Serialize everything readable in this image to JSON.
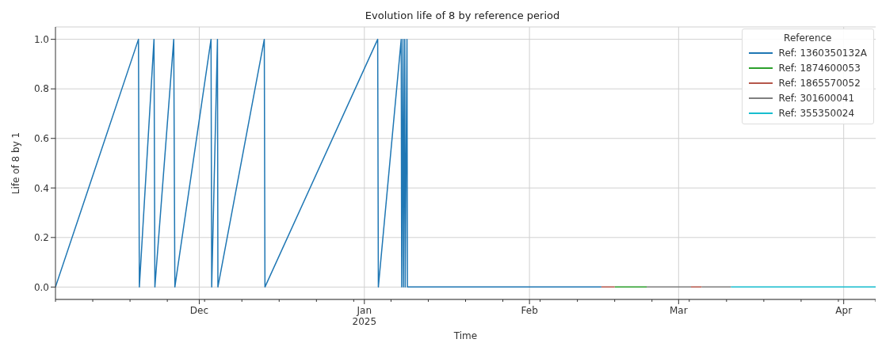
{
  "chart_data": {
    "type": "line",
    "title": "Evolution life of 8 by reference period",
    "xlabel": "Time",
    "ylabel": "Life of 8 by 1",
    "legend_title": "Reference",
    "legend": "top right",
    "grid": true,
    "line_style": "solid",
    "marker": "none",
    "xlim": [
      "2024-11-04",
      "2025-04-07"
    ],
    "xticks": [
      {
        "value": "2024-11-04",
        "label": null
      },
      {
        "value": "2024-11-11",
        "label": null
      },
      {
        "value": "2024-11-18",
        "label": null
      },
      {
        "value": "2024-11-25",
        "label": null
      },
      {
        "value": "2024-12-01",
        "label": "Dec"
      },
      {
        "value": "2024-12-02",
        "label": null
      },
      {
        "value": "2024-12-09",
        "label": null
      },
      {
        "value": "2024-12-16",
        "label": null
      },
      {
        "value": "2024-12-23",
        "label": null
      },
      {
        "value": "2024-12-30",
        "label": null
      },
      {
        "value": "2025-01-01",
        "label": "Jan\n2025"
      },
      {
        "value": "2025-01-06",
        "label": null
      },
      {
        "value": "2025-01-13",
        "label": null
      },
      {
        "value": "2025-01-20",
        "label": null
      },
      {
        "value": "2025-01-27",
        "label": null
      },
      {
        "value": "2025-02-01",
        "label": "Feb"
      },
      {
        "value": "2025-02-03",
        "label": null
      },
      {
        "value": "2025-02-10",
        "label": null
      },
      {
        "value": "2025-02-17",
        "label": null
      },
      {
        "value": "2025-02-24",
        "label": null
      },
      {
        "value": "2025-03-01",
        "label": "Mar"
      },
      {
        "value": "2025-03-03",
        "label": null
      },
      {
        "value": "2025-03-10",
        "label": null
      },
      {
        "value": "2025-03-17",
        "label": null
      },
      {
        "value": "2025-03-24",
        "label": null
      },
      {
        "value": "2025-03-31",
        "label": null
      },
      {
        "value": "2025-04-01",
        "label": "Apr"
      },
      {
        "value": "2025-04-07",
        "label": null
      }
    ],
    "ylim": [
      -0.05,
      1.05
    ],
    "yticks": [
      {
        "value": 0,
        "label": "0.0"
      },
      {
        "value": 0.2,
        "label": "0.2"
      },
      {
        "value": 0.4,
        "label": "0.4"
      },
      {
        "value": 0.6,
        "label": "0.6"
      },
      {
        "value": 0.8,
        "label": "0.8"
      },
      {
        "value": 1,
        "label": "1.0"
      }
    ],
    "series": [
      {
        "name": "Ref: 1360350132A",
        "color": "#1f77b4",
        "x": [
          "2024-11-04",
          "2024-11-19T14:00",
          "2024-11-19T18:00",
          "2024-11-22T12:00",
          "2024-11-22T16:00",
          "2024-11-26T05:00",
          "2024-11-26T10:00",
          "2024-12-03T05:00",
          "2024-12-03T08:00",
          "2024-12-04T10:00",
          "2024-12-04T12:00",
          "2024-12-13T05:00",
          "2024-12-13T08:00",
          "2025-01-03T12:00",
          "2025-01-03T15:00",
          "2025-01-07T22:00",
          "2025-01-08T00:00",
          "2025-01-08T06:00",
          "2025-01-08T08:00",
          "2025-01-08T14:00",
          "2025-01-08T16:00",
          "2025-01-09T00:00",
          "2025-01-09T02:00",
          "2025-02-14T12:00"
        ],
        "values": [
          0,
          1,
          0,
          1,
          0,
          1,
          0,
          1,
          0,
          1,
          0,
          1,
          0,
          1,
          0,
          1,
          0,
          1,
          0,
          1,
          0,
          1,
          0,
          0
        ]
      },
      {
        "name": "Ref: 1874600053",
        "color": "#2ca02c",
        "x": [
          "2025-02-17",
          "2025-02-23"
        ],
        "values": [
          0,
          0
        ]
      },
      {
        "name": "Ref: 1865570052",
        "color": "#b5564a",
        "x": [
          "2025-02-14T12:00",
          "2025-02-17",
          "2025-02-20",
          "2025-03-03T08:00",
          "2025-03-05T08:00"
        ],
        "values": [
          0,
          0,
          null,
          0,
          0
        ]
      },
      {
        "name": "Ref: 301600041",
        "color": "#7f7f7f",
        "x": [
          "2025-02-23",
          "2025-03-03T08:00",
          "2025-03-04",
          "2025-03-05T08:00",
          "2025-03-10T20:00"
        ],
        "values": [
          0,
          0,
          null,
          0,
          0
        ]
      },
      {
        "name": "Ref: 355350024",
        "color": "#17becf",
        "x": [
          "2025-03-10T20:00",
          "2025-04-07"
        ],
        "values": [
          0,
          0
        ]
      }
    ]
  }
}
